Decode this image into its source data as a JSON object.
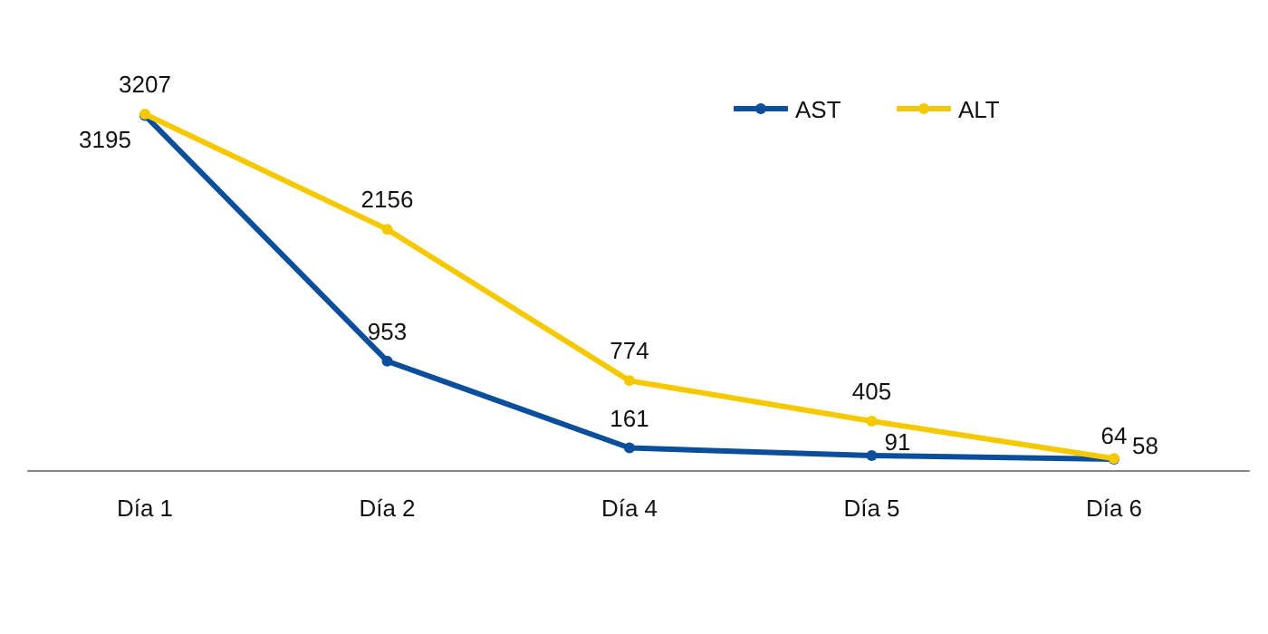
{
  "chart_data": {
    "type": "line",
    "categories": [
      "Día 1",
      "Día 2",
      "Día 4",
      "Día 5",
      "Día 6"
    ],
    "series": [
      {
        "name": "AST",
        "color": "#0b4f9c",
        "values": [
          3195,
          953,
          161,
          91,
          58
        ]
      },
      {
        "name": "ALT",
        "color": "#f5c900",
        "values": [
          3207,
          2156,
          774,
          405,
          64
        ]
      }
    ],
    "data_labels": true,
    "legend": "top right",
    "marker": "circle",
    "line_style": "solid",
    "relative": false
  }
}
